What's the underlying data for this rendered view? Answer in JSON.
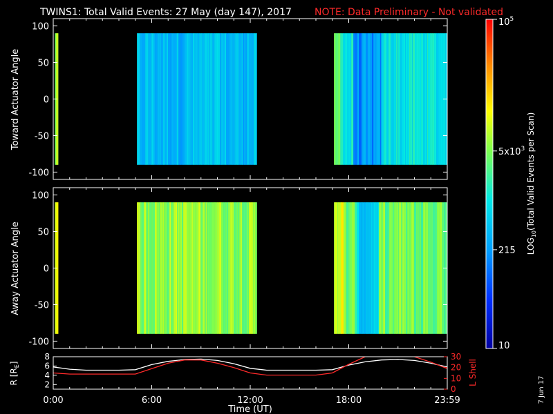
{
  "header": {
    "title": "TWINS1: Total Valid Events: 27 May (day 147), 2017",
    "note": "NOTE: Data Preliminary - Not validated"
  },
  "stamp": "7 Jun 17",
  "colors": {
    "background": "#000000",
    "text": "#ffffff",
    "note": "#ff2a2a",
    "r_line": "#ffffff",
    "lshell_line": "#ff2a2a"
  },
  "chart_data": [
    {
      "type": "heatmap",
      "id": "toward",
      "ylabel": "Toward Actuator Angle",
      "ylim": [
        -110,
        110
      ],
      "yticks": [
        "100",
        "50",
        "0",
        "-50",
        "-100"
      ],
      "xlim": [
        0,
        24
      ],
      "data_y_range": [
        -90,
        90
      ],
      "segments": [
        {
          "x": [
            0.1,
            0.3
          ],
          "level": 0.62
        },
        {
          "x": [
            5.1,
            12.4
          ],
          "level": 0.36
        },
        {
          "x": [
            17.1,
            24.0
          ],
          "level": 0.44
        }
      ]
    },
    {
      "type": "heatmap",
      "id": "away",
      "ylabel": "Away Actuator Angle",
      "ylim": [
        -110,
        110
      ],
      "yticks": [
        "100",
        "50",
        "0",
        "-50",
        "-100"
      ],
      "xlim": [
        0,
        24
      ],
      "data_y_range": [
        -90,
        90
      ],
      "segments": [
        {
          "x": [
            0.1,
            0.3
          ],
          "level": 0.74
        },
        {
          "x": [
            5.1,
            12.4
          ],
          "level": 0.62
        },
        {
          "x": [
            17.1,
            24.0
          ],
          "level": 0.58
        }
      ]
    },
    {
      "type": "line",
      "id": "orbit",
      "ylabel": "R [R",
      "ylabel_sub": "E",
      "ylabel_end": "]",
      "ylim": [
        1,
        8
      ],
      "yticks": [
        "8",
        "6",
        "4",
        "2"
      ],
      "y2label": "L Shell",
      "y2lim": [
        0,
        30
      ],
      "y2ticks": [
        "30",
        "20",
        "10",
        "0"
      ],
      "xlim": [
        0,
        24
      ],
      "xlabel": "Time (UT)",
      "xticks": [
        "0:00",
        "6:00",
        "12:00",
        "18:00",
        "23:59"
      ],
      "series": [
        {
          "axis": "left",
          "x": [
            0,
            1,
            2,
            3,
            4,
            5,
            6,
            7,
            8,
            9,
            10,
            11,
            12,
            13,
            14,
            15,
            16,
            17,
            18,
            19,
            20,
            21,
            22,
            23,
            24
          ],
          "y": [
            5.8,
            5.3,
            5.1,
            5.1,
            5.1,
            5.2,
            6.3,
            7.0,
            7.4,
            7.5,
            7.2,
            6.5,
            5.5,
            5.1,
            5.1,
            5.1,
            5.1,
            5.2,
            6.2,
            6.9,
            7.3,
            7.4,
            7.2,
            6.6,
            5.8
          ]
        },
        {
          "axis": "right",
          "x": [
            0,
            1,
            2,
            3,
            4,
            5,
            6,
            7,
            8,
            9,
            10,
            11,
            12,
            13,
            14,
            15,
            16,
            17,
            18,
            19
          ],
          "y": [
            15,
            14,
            14,
            14,
            14,
            14,
            19,
            24,
            27,
            27,
            24,
            20,
            15,
            13,
            13,
            13,
            13,
            15,
            23,
            30
          ]
        },
        {
          "axis": "right",
          "x": [
            22,
            23,
            24
          ],
          "y": [
            30,
            25,
            19
          ]
        }
      ]
    }
  ],
  "colorbar": {
    "label_parts": [
      "LOG",
      "10",
      "(Total Valid Events per Scan)"
    ],
    "ticks": [
      {
        "base": "10",
        "exp": "5",
        "level": 1.0
      },
      {
        "base": "5x10",
        "exp": "3",
        "level": 0.6
      },
      {
        "base": "215",
        "exp": "",
        "level": 0.3
      },
      {
        "base": "10",
        "exp": "",
        "level": 0.0
      }
    ]
  }
}
